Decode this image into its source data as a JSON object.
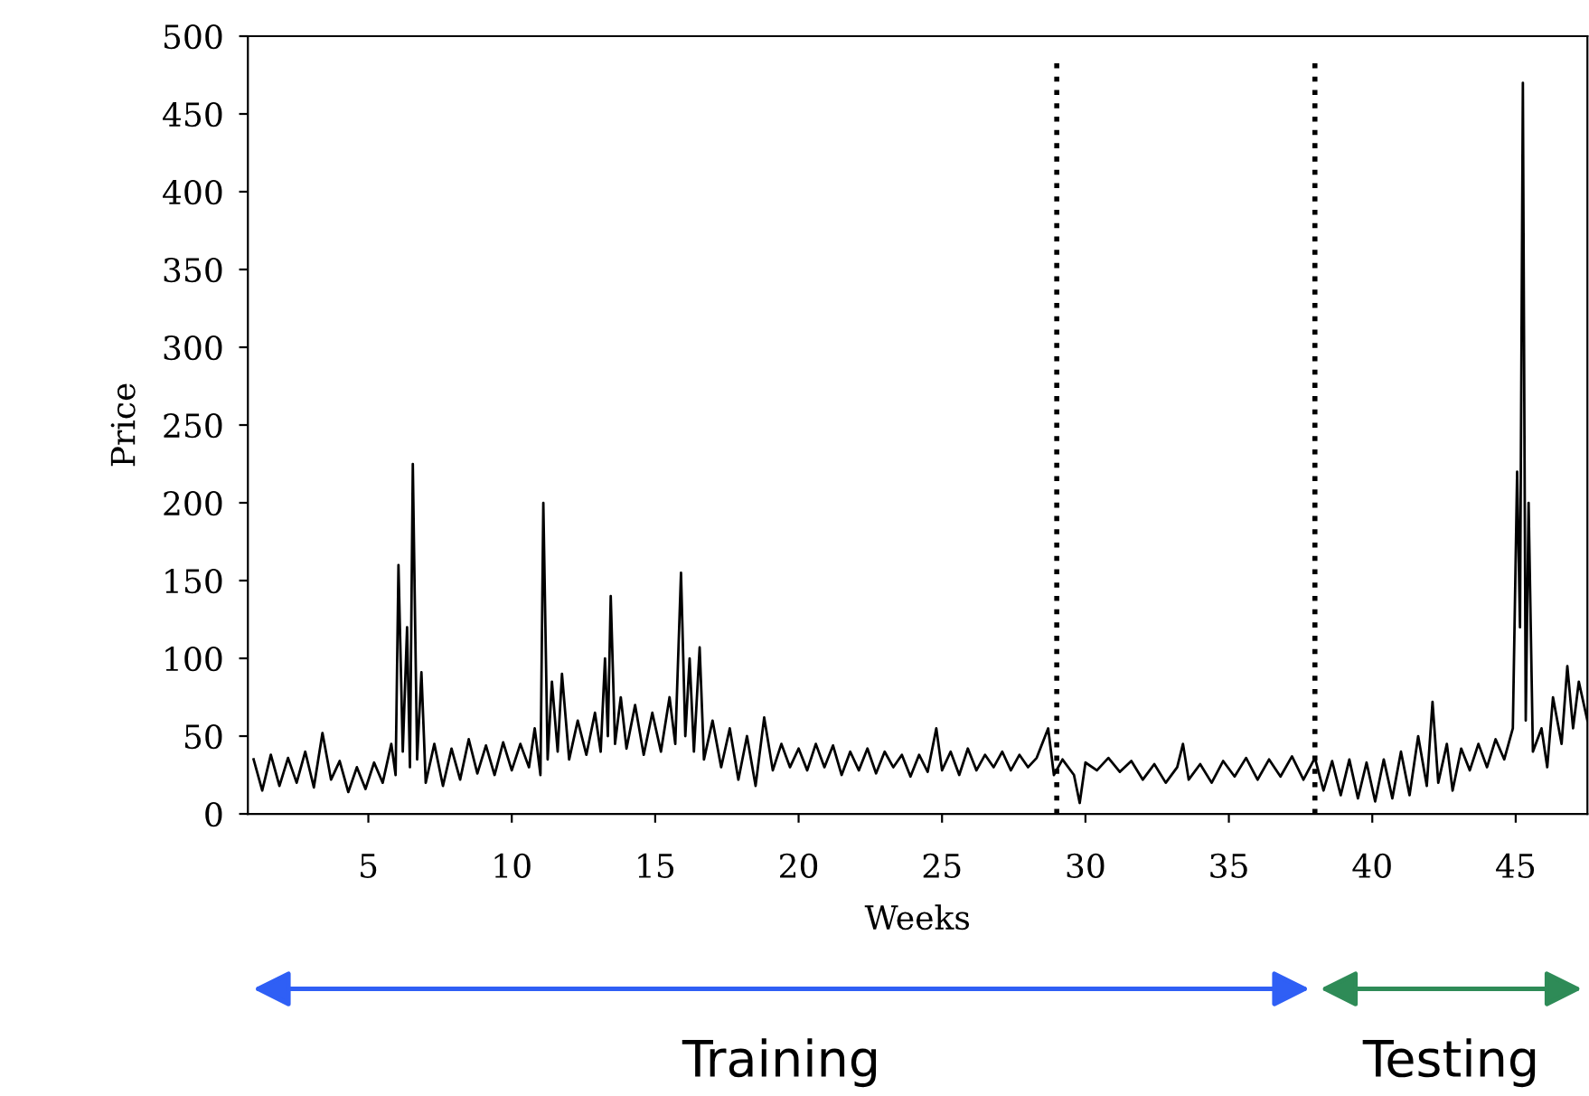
{
  "chart_data": {
    "type": "line",
    "xlabel": "Weeks",
    "ylabel": "Price",
    "series": [
      {
        "color": "#000000",
        "x": [
          1.0,
          1.3,
          1.6,
          1.9,
          2.2,
          2.5,
          2.8,
          3.1,
          3.4,
          3.7,
          4.0,
          4.3,
          4.6,
          4.9,
          5.2,
          5.5,
          5.8,
          5.95,
          6.05,
          6.2,
          6.35,
          6.45,
          6.55,
          6.7,
          6.85,
          7.0,
          7.3,
          7.6,
          7.9,
          8.2,
          8.5,
          8.8,
          9.1,
          9.4,
          9.7,
          10.0,
          10.3,
          10.6,
          10.8,
          11.0,
          11.1,
          11.25,
          11.4,
          11.6,
          11.75,
          12.0,
          12.3,
          12.6,
          12.9,
          13.1,
          13.25,
          13.35,
          13.45,
          13.6,
          13.8,
          14.0,
          14.3,
          14.6,
          14.9,
          15.2,
          15.5,
          15.7,
          15.9,
          16.05,
          16.2,
          16.35,
          16.55,
          16.7,
          17.0,
          17.3,
          17.6,
          17.9,
          18.2,
          18.5,
          18.8,
          19.1,
          19.4,
          19.7,
          20.0,
          20.3,
          20.6,
          20.9,
          21.2,
          21.5,
          21.8,
          22.1,
          22.4,
          22.7,
          23.0,
          23.3,
          23.6,
          23.9,
          24.2,
          24.5,
          24.8,
          25.0,
          25.3,
          25.6,
          25.9,
          26.2,
          26.5,
          26.8,
          27.1,
          27.4,
          27.7,
          28.0,
          28.3,
          28.7,
          28.9,
          29.2,
          29.6,
          29.8,
          30.0,
          30.4,
          30.8,
          31.2,
          31.6,
          32.0,
          32.4,
          32.8,
          33.2,
          33.4,
          33.6,
          34.0,
          34.4,
          34.8,
          35.2,
          35.6,
          36.0,
          36.4,
          36.8,
          37.2,
          37.6,
          38.0,
          38.3,
          38.6,
          38.9,
          39.2,
          39.5,
          39.8,
          40.1,
          40.4,
          40.7,
          41.0,
          41.3,
          41.6,
          41.9,
          42.1,
          42.3,
          42.6,
          42.8,
          43.1,
          43.4,
          43.7,
          44.0,
          44.3,
          44.6,
          44.9,
          45.05,
          45.15,
          45.25,
          45.35,
          45.45,
          45.6,
          45.9,
          46.1,
          46.3,
          46.6,
          46.8,
          47.0,
          47.2,
          47.5
        ],
        "values": [
          35,
          15,
          38,
          18,
          36,
          20,
          40,
          17,
          52,
          22,
          34,
          14,
          30,
          16,
          33,
          20,
          45,
          25,
          160,
          40,
          120,
          30,
          225,
          35,
          91,
          20,
          45,
          18,
          42,
          22,
          48,
          26,
          44,
          25,
          46,
          28,
          45,
          30,
          55,
          25,
          200,
          35,
          85,
          40,
          90,
          35,
          60,
          38,
          65,
          40,
          100,
          50,
          140,
          45,
          75,
          42,
          70,
          38,
          65,
          40,
          75,
          45,
          155,
          50,
          100,
          40,
          107,
          35,
          60,
          30,
          55,
          22,
          50,
          18,
          62,
          28,
          45,
          30,
          42,
          28,
          45,
          30,
          44,
          25,
          40,
          28,
          42,
          26,
          40,
          30,
          38,
          24,
          38,
          27,
          55,
          28,
          40,
          25,
          42,
          28,
          38,
          30,
          40,
          28,
          38,
          30,
          36,
          55,
          25,
          35,
          25,
          7,
          33,
          28,
          36,
          27,
          34,
          22,
          32,
          20,
          30,
          45,
          22,
          32,
          20,
          34,
          24,
          36,
          22,
          35,
          24,
          37,
          22,
          36,
          15,
          34,
          12,
          35,
          10,
          33,
          8,
          35,
          10,
          40,
          12,
          50,
          18,
          72,
          20,
          45,
          15,
          42,
          28,
          45,
          30,
          48,
          35,
          55,
          220,
          120,
          470,
          60,
          200,
          40,
          55,
          30,
          75,
          45,
          95,
          55,
          85,
          60
        ]
      }
    ],
    "xlim": [
      0.8,
      47.5
    ],
    "xticks": [
      5,
      10,
      15,
      20,
      25,
      30,
      35,
      40,
      45
    ],
    "ylim": [
      0,
      500
    ],
    "yticks": [
      0,
      50,
      100,
      150,
      200,
      250,
      300,
      350,
      400,
      450,
      500
    ],
    "ref_lines": [
      {
        "axis": "x",
        "value": 29,
        "line_style": "dotted",
        "color": "#000000"
      },
      {
        "axis": "x",
        "value": 38,
        "line_style": "dotted",
        "color": "#000000"
      }
    ],
    "annotations": [
      "Training",
      "Testing"
    ],
    "grid": false,
    "legend": false
  }
}
